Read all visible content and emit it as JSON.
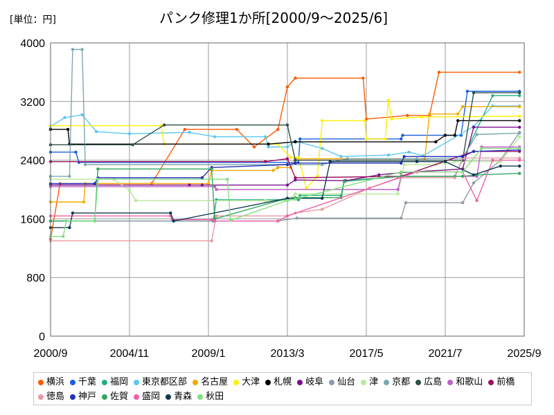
{
  "unit_label": "[単位：円]",
  "chart_data": {
    "type": "line",
    "title": "パンク修理1か所[2000/9～2025/6]",
    "xlabel": "",
    "ylabel": "",
    "x_ticks": [
      "2000/9",
      "2004/11",
      "2009/1",
      "2013/3",
      "2017/5",
      "2021/7",
      "2025/9"
    ],
    "y_ticks": [
      0,
      800,
      1600,
      2400,
      3200,
      4000
    ],
    "ylim": [
      0,
      4000
    ],
    "grid": true,
    "legend_position": "bottom",
    "series": [
      {
        "name": "横浜",
        "color": "#ff5a00",
        "points": [
          [
            "2000/9",
            1320
          ],
          [
            "2001/3",
            2080
          ],
          [
            "2006/1",
            2080
          ],
          [
            "2007/10",
            2820
          ],
          [
            "2010/7",
            2820
          ],
          [
            "2011/6",
            2580
          ],
          [
            "2012/9",
            2820
          ],
          [
            "2013/3",
            3400
          ],
          [
            "2013/8",
            3520
          ],
          [
            "2017/3",
            3520
          ],
          [
            "2017/5",
            2960
          ],
          [
            "2019/7",
            3010
          ],
          [
            "2020/9",
            3010
          ],
          [
            "2021/3",
            3600
          ],
          [
            "2025/6",
            3600
          ]
        ]
      },
      {
        "name": "千葉",
        "color": "#1560e0",
        "points": [
          [
            "2000/9",
            2510
          ],
          [
            "2002/1",
            2510
          ],
          [
            "2002/3",
            2370
          ],
          [
            "2013/10",
            2370
          ],
          [
            "2013/11",
            2690
          ],
          [
            "2019/3",
            2690
          ],
          [
            "2019/4",
            2740
          ],
          [
            "2022/5",
            2740
          ],
          [
            "2022/9",
            3340
          ],
          [
            "2025/6",
            3340
          ]
        ]
      },
      {
        "name": "福岡",
        "color": "#20b080",
        "points": [
          [
            "2000/9",
            1570
          ],
          [
            "2009/4",
            1570
          ],
          [
            "2009/6",
            1860
          ],
          [
            "2013/10",
            1860
          ],
          [
            "2013/11",
            1920
          ],
          [
            "2016/1",
            1920
          ],
          [
            "2016/3",
            2120
          ],
          [
            "2019/4",
            2180
          ],
          [
            "2022/1",
            2180
          ],
          [
            "2024/1",
            3280
          ],
          [
            "2025/6",
            3280
          ]
        ]
      },
      {
        "name": "東京都区部",
        "color": "#5ac8f0",
        "points": [
          [
            "2000/9",
            2860
          ],
          [
            "2001/6",
            2980
          ],
          [
            "2002/5",
            3020
          ],
          [
            "2003/2",
            2790
          ],
          [
            "2004/11",
            2760
          ],
          [
            "2008/1",
            2780
          ],
          [
            "2009/5",
            2720
          ],
          [
            "2012/1",
            2720
          ],
          [
            "2012/3",
            2580
          ],
          [
            "2013/3",
            2580
          ],
          [
            "2013/8",
            2660
          ],
          [
            "2015/1",
            2560
          ],
          [
            "2016/1",
            2450
          ],
          [
            "2018/7",
            2470
          ],
          [
            "2019/8",
            2510
          ],
          [
            "2020/5",
            2460
          ],
          [
            "2023/1",
            2860
          ],
          [
            "2024/1",
            3140
          ],
          [
            "2025/6",
            3140
          ]
        ]
      },
      {
        "name": "名古屋",
        "color": "#f5a800",
        "points": [
          [
            "2000/9",
            1830
          ],
          [
            "2002/6",
            1830
          ],
          [
            "2002/7",
            2080
          ],
          [
            "2009/1",
            2080
          ],
          [
            "2009/3",
            2260
          ],
          [
            "2012/6",
            2260
          ],
          [
            "2012/9",
            2300
          ],
          [
            "2013/5",
            2300
          ],
          [
            "2013/8",
            2420
          ],
          [
            "2020/6",
            2420
          ],
          [
            "2020/9",
            3030
          ],
          [
            "2022/3",
            3030
          ],
          [
            "2022/6",
            3130
          ],
          [
            "2025/6",
            3130
          ]
        ]
      },
      {
        "name": "大津",
        "color": "#fff000",
        "points": [
          [
            "2000/9",
            2870
          ],
          [
            "2006/7",
            2870
          ],
          [
            "2006/9",
            2620
          ],
          [
            "2012/9",
            2620
          ],
          [
            "2013/5",
            2440
          ],
          [
            "2013/10",
            2440
          ],
          [
            "2014/3",
            2020
          ],
          [
            "2014/10",
            2180
          ],
          [
            "2015/1",
            2940
          ],
          [
            "2017/4",
            2940
          ],
          [
            "2017/5",
            2690
          ],
          [
            "2018/5",
            2690
          ],
          [
            "2018/7",
            3220
          ],
          [
            "2018/9",
            2960
          ],
          [
            "2020/4",
            2990
          ],
          [
            "2025/6",
            3000
          ]
        ]
      },
      {
        "name": "札幌",
        "color": "#000000",
        "points": [
          [
            "2000/9",
            2820
          ],
          [
            "2001/8",
            2820
          ],
          [
            "2001/9",
            2620
          ],
          [
            "2012/3",
            2620
          ],
          [
            "2013/8",
            2650
          ],
          [
            "2021/1",
            2650
          ],
          [
            "2021/7",
            2740
          ],
          [
            "2022/1",
            2740
          ],
          [
            "2022/3",
            2940
          ],
          [
            "2025/6",
            2940
          ]
        ]
      },
      {
        "name": "岐阜",
        "color": "#7a1090",
        "points": [
          [
            "2000/9",
            2060
          ],
          [
            "2008/1",
            2060
          ],
          [
            "2008/9",
            2060
          ],
          [
            "2013/3",
            2060
          ],
          [
            "2013/8",
            2130
          ],
          [
            "2016/4",
            2120
          ],
          [
            "2018/1",
            2200
          ],
          [
            "2019/3",
            2230
          ],
          [
            "2022/6",
            2280
          ],
          [
            "2023/1",
            2850
          ],
          [
            "2025/6",
            2850
          ]
        ]
      },
      {
        "name": "仙台",
        "color": "#909aa8",
        "points": [
          [
            "2000/9",
            1570
          ],
          [
            "2012/9",
            1570
          ],
          [
            "2013/9",
            1610
          ],
          [
            "2019/3",
            1610
          ],
          [
            "2019/6",
            1820
          ],
          [
            "2022/6",
            1820
          ],
          [
            "2023/1",
            2090
          ],
          [
            "2024/6",
            2400
          ],
          [
            "2025/6",
            2780
          ]
        ]
      },
      {
        "name": "津",
        "color": "#b8e898",
        "points": [
          [
            "2000/9",
            2140
          ],
          [
            "2004/1",
            2140
          ],
          [
            "2004/11",
            1990
          ],
          [
            "2005/3",
            1850
          ],
          [
            "2012/1",
            1850
          ],
          [
            "2013/3",
            1850
          ],
          [
            "2013/8",
            1940
          ],
          [
            "2019/1",
            1940
          ],
          [
            "2019/5",
            2340
          ],
          [
            "2021/1",
            2340
          ],
          [
            "2022/1",
            2380
          ],
          [
            "2024/6",
            2380
          ],
          [
            "2025/6",
            2720
          ]
        ]
      },
      {
        "name": "京都",
        "color": "#7aa8b0",
        "points": [
          [
            "2000/9",
            2180
          ],
          [
            "2001/9",
            2180
          ],
          [
            "2001/11",
            3910
          ],
          [
            "2002/5",
            3910
          ],
          [
            "2002/7",
            2340
          ],
          [
            "2015/1",
            2340
          ],
          [
            "2016/5",
            2420
          ],
          [
            "2020/1",
            2420
          ],
          [
            "2022/6",
            2430
          ],
          [
            "2023/3",
            2750
          ],
          [
            "2025/6",
            2770
          ]
        ]
      },
      {
        "name": "広島",
        "color": "#2f4f46",
        "points": [
          [
            "2000/9",
            2610
          ],
          [
            "2005/1",
            2610
          ],
          [
            "2006/9",
            2880
          ],
          [
            "2013/3",
            2880
          ],
          [
            "2013/8",
            2400
          ],
          [
            "2022/6",
            2400
          ],
          [
            "2023/1",
            3320
          ],
          [
            "2025/6",
            3320
          ]
        ]
      },
      {
        "name": "和歌山",
        "color": "#c060c8",
        "points": [
          [
            "2000/9",
            2040
          ],
          [
            "2009/5",
            2040
          ],
          [
            "2009/6",
            2000
          ],
          [
            "2019/1",
            2000
          ],
          [
            "2019/3",
            2180
          ],
          [
            "2023/3",
            2180
          ],
          [
            "2023/6",
            2580
          ],
          [
            "2025/6",
            2580
          ]
        ]
      },
      {
        "name": "前橋",
        "color": "#a01060",
        "points": [
          [
            "2000/9",
            2380
          ],
          [
            "2012/1",
            2380
          ],
          [
            "2013/3",
            2420
          ],
          [
            "2013/8",
            2160
          ],
          [
            "2019/3",
            2180
          ],
          [
            "2023/1",
            2520
          ],
          [
            "2025/6",
            2520
          ]
        ]
      },
      {
        "name": "徳島",
        "color": "#e89aa0",
        "points": [
          [
            "2000/9",
            1300
          ],
          [
            "2009/3",
            1300
          ],
          [
            "2009/6",
            1640
          ],
          [
            "2013/3",
            1640
          ],
          [
            "2013/8",
            1680
          ],
          [
            "2015/1",
            1730
          ],
          [
            "2017/7",
            2020
          ],
          [
            "2019/1",
            2160
          ],
          [
            "2022/1",
            2160
          ],
          [
            "2022/6",
            2430
          ],
          [
            "2025/6",
            2430
          ]
        ]
      },
      {
        "name": "神戸",
        "color": "#2030b8",
        "points": [
          [
            "2000/9",
            2080
          ],
          [
            "2003/1",
            2080
          ],
          [
            "2003/3",
            2160
          ],
          [
            "2008/9",
            2160
          ],
          [
            "2009/3",
            2300
          ],
          [
            "2013/3",
            2340
          ],
          [
            "2013/8",
            2360
          ],
          [
            "2019/3",
            2360
          ],
          [
            "2019/5",
            2450
          ],
          [
            "2022/6",
            2450
          ],
          [
            "2023/1",
            2520
          ],
          [
            "2025/6",
            2540
          ]
        ]
      },
      {
        "name": "佐賀",
        "color": "#30a860",
        "points": [
          [
            "2000/9",
            1570
          ],
          [
            "2003/1",
            1570
          ],
          [
            "2003/3",
            2280
          ],
          [
            "2009/3",
            2280
          ],
          [
            "2009/5",
            1600
          ],
          [
            "2013/3",
            1880
          ],
          [
            "2013/8",
            1890
          ],
          [
            "2016/1",
            1890
          ],
          [
            "2016/3",
            2110
          ],
          [
            "2019/3",
            2180
          ],
          [
            "2022/6",
            2180
          ],
          [
            "2023/3",
            2200
          ],
          [
            "2025/6",
            2220
          ]
        ]
      },
      {
        "name": "盛岡",
        "color": "#f060a8",
        "points": [
          [
            "2000/9",
            1640
          ],
          [
            "2007/1",
            1640
          ],
          [
            "2007/2",
            1590
          ],
          [
            "2009/3",
            1590
          ],
          [
            "2009/5",
            1570
          ],
          [
            "2012/9",
            1570
          ],
          [
            "2013/3",
            1640
          ],
          [
            "2020/1",
            2240
          ],
          [
            "2022/6",
            2240
          ],
          [
            "2023/3",
            1850
          ],
          [
            "2024/1",
            2400
          ],
          [
            "2025/6",
            2400
          ]
        ]
      },
      {
        "name": "青森",
        "color": "#103850",
        "points": [
          [
            "2000/9",
            1480
          ],
          [
            "2001/9",
            1480
          ],
          [
            "2001/11",
            1680
          ],
          [
            "2007/1",
            1680
          ],
          [
            "2007/3",
            1570
          ],
          [
            "2013/3",
            1880
          ],
          [
            "2015/1",
            1880
          ],
          [
            "2015/6",
            2380
          ],
          [
            "2020/1",
            2380
          ],
          [
            "2021/7",
            2380
          ],
          [
            "2023/1",
            2200
          ],
          [
            "2024/6",
            2320
          ],
          [
            "2025/6",
            2320
          ]
        ]
      },
      {
        "name": "秋田",
        "color": "#80e080",
        "points": [
          [
            "2000/9",
            1360
          ],
          [
            "2001/5",
            1360
          ],
          [
            "2001/7",
            1570
          ],
          [
            "2003/1",
            1570
          ],
          [
            "2003/3",
            2140
          ],
          [
            "2010/1",
            2140
          ],
          [
            "2010/3",
            1580
          ],
          [
            "2013/3",
            1850
          ],
          [
            "2013/8",
            1870
          ],
          [
            "2019/3",
            2240
          ],
          [
            "2022/6",
            2240
          ],
          [
            "2023/6",
            2560
          ],
          [
            "2025/6",
            2560
          ]
        ]
      }
    ]
  }
}
